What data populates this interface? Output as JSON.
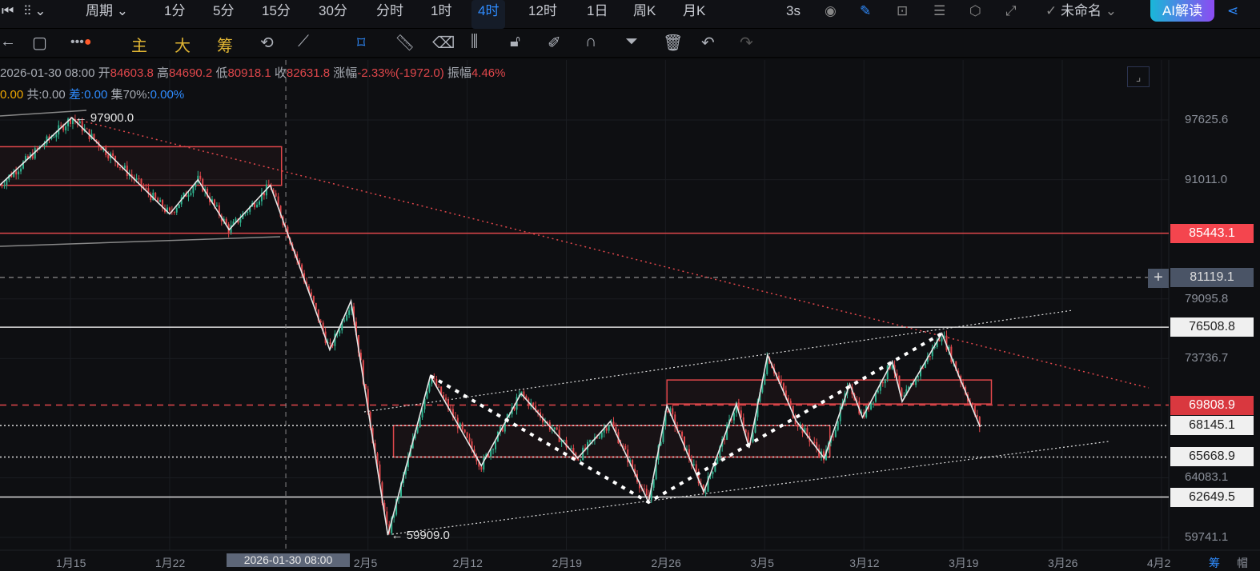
{
  "toolbar": {
    "period": "周期",
    "intervals": [
      "1分",
      "5分",
      "15分",
      "30分",
      "分时",
      "1时",
      "4时",
      "12时",
      "1日",
      "周K",
      "月K"
    ],
    "active": "4时",
    "refresh": "3s",
    "layout_name": "未命名",
    "ai_label": "AI解读"
  },
  "tools": {
    "main": "主",
    "big": "大",
    "chips": "筹"
  },
  "info": {
    "datetime": "2026-01-30 08:00",
    "open_label": "开",
    "open": "84603.8",
    "high_label": "高",
    "high": "84690.2",
    "low_label": "低",
    "low": "80918.1",
    "close_label": "收",
    "close": "82631.8",
    "change_label": "涨幅",
    "change": "-2.33%(-1972.0)",
    "amp_label": "振幅",
    "amp": "4.46%",
    "row2": {
      "a_val": "0.00",
      "b_label": "共:",
      "b_val": "0.00",
      "c_label": "差:",
      "c_val": "0.00",
      "d_label": "集70%:",
      "d_val": "0.00%"
    }
  },
  "colors": {
    "up": "#2fb38f",
    "down": "#e0474b",
    "accent": "#2f8cff"
  },
  "chart_data": {
    "type": "candlestick",
    "interval": "4h",
    "y_scale": "log",
    "y_ticks": [
      "97625.6",
      "91011.0",
      "79095.8",
      "73736.7",
      "64083.1",
      "59741.1"
    ],
    "x_ticks": [
      "1月15",
      "1月22",
      "2月5",
      "2月12",
      "2月19",
      "2月26",
      "3月5",
      "3月12",
      "3月19",
      "3月26",
      "4月2"
    ],
    "x_tick_days": [
      0,
      7,
      21,
      28,
      35,
      42,
      49,
      56,
      63,
      70,
      77
    ],
    "crosshair": {
      "label": "2026-01-30 08:00",
      "day": 15.2
    },
    "price_tags": [
      {
        "value": "85443.1",
        "style": "red-solid"
      },
      {
        "value": "81119.1",
        "style": "gray-dashed"
      },
      {
        "value": "76508.8",
        "style": "white-solid"
      },
      {
        "value": "69808.9",
        "style": "red-dashed"
      },
      {
        "value": "68145.1",
        "style": "white-dotted"
      },
      {
        "value": "65668.9",
        "style": "white-dotted"
      },
      {
        "value": "62649.5",
        "style": "white-solid"
      }
    ],
    "annotations": [
      {
        "text": "97900.0",
        "day": 0.1,
        "price": 97900
      },
      {
        "text": "59909.0",
        "day": 22.4,
        "price": 59909
      }
    ],
    "swings": [
      [
        -5,
        90400
      ],
      [
        0.1,
        97900
      ],
      [
        7,
        87400
      ],
      [
        9,
        91000
      ],
      [
        11.2,
        85800
      ],
      [
        14.1,
        90400
      ],
      [
        18.3,
        74500
      ],
      [
        19.8,
        78900
      ],
      [
        22.4,
        59909
      ],
      [
        25.4,
        72250
      ],
      [
        29,
        65000
      ],
      [
        31.8,
        70760
      ],
      [
        35.8,
        65580
      ],
      [
        38.1,
        68480
      ],
      [
        40.8,
        62270
      ],
      [
        42.1,
        69780
      ],
      [
        44.7,
        63040
      ],
      [
        47,
        69900
      ],
      [
        47.9,
        66380
      ],
      [
        49.2,
        74040
      ],
      [
        51.2,
        68560
      ],
      [
        53.2,
        65580
      ],
      [
        55,
        71560
      ],
      [
        55.9,
        68800
      ],
      [
        58,
        73480
      ],
      [
        58.7,
        70100
      ],
      [
        61.5,
        75950
      ],
      [
        62.7,
        72250
      ],
      [
        64.2,
        68050
      ]
    ]
  },
  "footer": {
    "right1": "筹",
    "right2": "帽"
  }
}
